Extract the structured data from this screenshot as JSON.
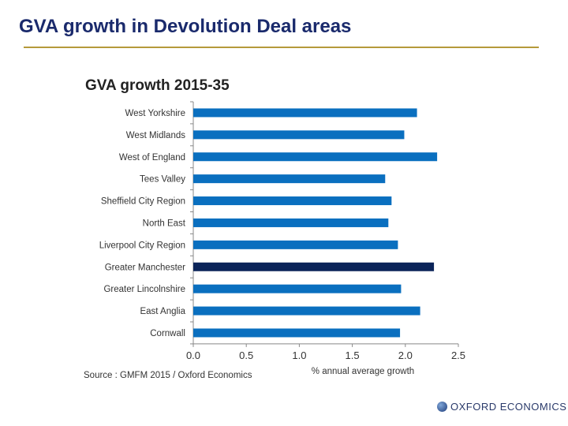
{
  "page": {
    "title": "GVA growth in Devolution Deal areas",
    "logo_text": "OXFORD ECONOMICS"
  },
  "chart_data": {
    "type": "bar",
    "orientation": "horizontal",
    "title": "GVA growth 2015-35",
    "xlabel": "% annual average growth",
    "source": "Source : GMFM 2015 / Oxford Economics",
    "categories": [
      "West Yorkshire",
      "West Midlands",
      "West of England",
      "Tees Valley",
      "Sheffield City Region",
      "North East",
      "Liverpool City Region",
      "Greater Manchester",
      "Greater Lincolnshire",
      "East Anglia",
      "Cornwall"
    ],
    "values": [
      2.11,
      1.99,
      2.3,
      1.81,
      1.87,
      1.84,
      1.93,
      2.27,
      1.96,
      2.14,
      1.95
    ],
    "highlight": "Greater Manchester",
    "xlim": [
      0,
      2.5
    ],
    "xticks": [
      "0.0",
      "0.5",
      "1.0",
      "1.5",
      "2.0",
      "2.5"
    ],
    "grid": false,
    "colors": {
      "bar": "#0a6fbf",
      "highlight": "#0b2459"
    }
  }
}
